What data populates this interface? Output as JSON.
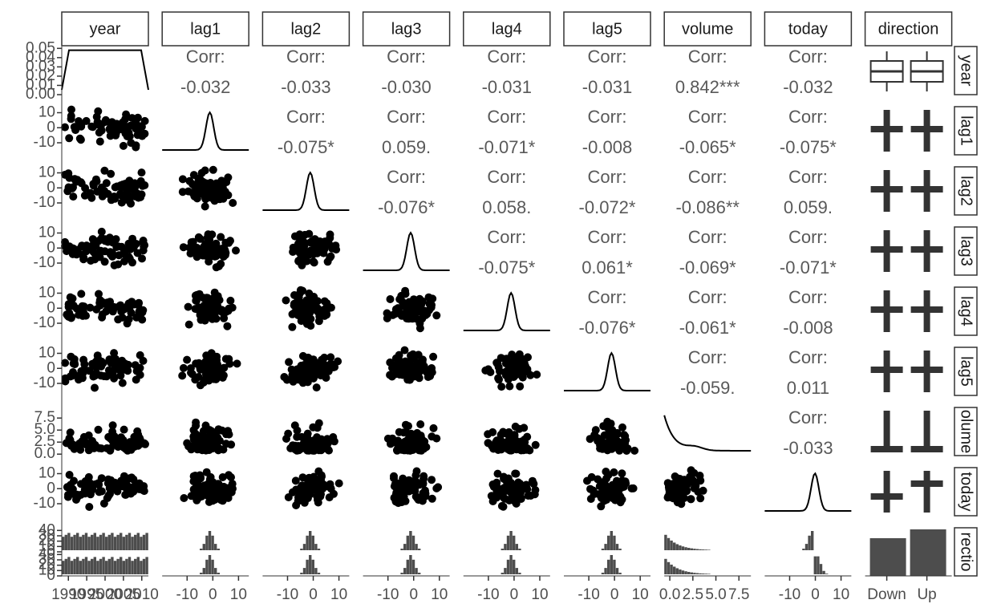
{
  "chart_data": {
    "type": "pairs",
    "variables": [
      "year",
      "lag1",
      "lag2",
      "lag3",
      "lag4",
      "lag5",
      "volume",
      "today",
      "direction"
    ],
    "row_strips": [
      "year",
      "lag1",
      "lag2",
      "lag3",
      "lag4",
      "lag5",
      "olume",
      "today",
      "rectio"
    ],
    "corr_title": "Corr:",
    "correlations": {
      "values": [
        [
          -0.032,
          -0.033,
          -0.03,
          -0.031,
          -0.031,
          0.842,
          -0.032
        ],
        [
          -0.075,
          0.059,
          -0.071,
          -0.008,
          -0.065,
          -0.075
        ],
        [
          -0.076,
          0.058,
          -0.072,
          -0.086,
          0.059
        ],
        [
          -0.075,
          0.061,
          -0.069,
          -0.071
        ],
        [
          -0.076,
          -0.061,
          -0.008
        ],
        [
          -0.059,
          0.011
        ],
        [
          -0.033
        ]
      ],
      "value_labels": [
        [
          "-0.032",
          "-0.033",
          "-0.030",
          "-0.031",
          "-0.031",
          "0.842***",
          "-0.032"
        ],
        [
          "-0.075*",
          "0.059.",
          "-0.071*",
          "-0.008",
          "-0.065*",
          "-0.075*"
        ],
        [
          "-0.076*",
          "0.058.",
          "-0.072*",
          "-0.086**",
          "0.059."
        ],
        [
          "-0.075*",
          "0.061*",
          "-0.069*",
          "-0.071*"
        ],
        [
          "-0.076*",
          "-0.061*",
          "-0.008"
        ],
        [
          "-0.059.",
          "0.011"
        ],
        [
          "-0.033"
        ]
      ]
    },
    "year_density_ylim": [
      0,
      0.052
    ],
    "year_density_yticks": [
      {
        "value": 0,
        "label": "0.00"
      },
      {
        "value": 0.01,
        "label": "0.01"
      },
      {
        "value": 0.02,
        "label": "0.02"
      },
      {
        "value": 0.03,
        "label": "0.03"
      },
      {
        "value": 0.04,
        "label": "0.04"
      },
      {
        "value": 0.05,
        "label": "0.05"
      }
    ],
    "lag_ylim": [
      -18,
      14
    ],
    "lag_xlim": [
      -19.7,
      14
    ],
    "lag_ticks": [
      -10,
      0,
      10
    ],
    "volume_ylim": [
      -0.3,
      9.7
    ],
    "volume_xlim": [
      -0.6,
      8.8
    ],
    "volume_ticks": [
      {
        "value": 0,
        "label": "0.0"
      },
      2.5,
      {
        "value": 5,
        "label": "5.0"
      },
      7.5
    ],
    "count_ylim": [
      0,
      45
    ],
    "count_ticks": [
      0,
      10,
      20,
      30,
      40
    ],
    "year_xlim": [
      1988.2,
      2011.8
    ],
    "year_xticks": [
      1990,
      1995,
      2000,
      2005,
      2010
    ],
    "direction_levels": [
      "Down",
      "Up"
    ]
  }
}
